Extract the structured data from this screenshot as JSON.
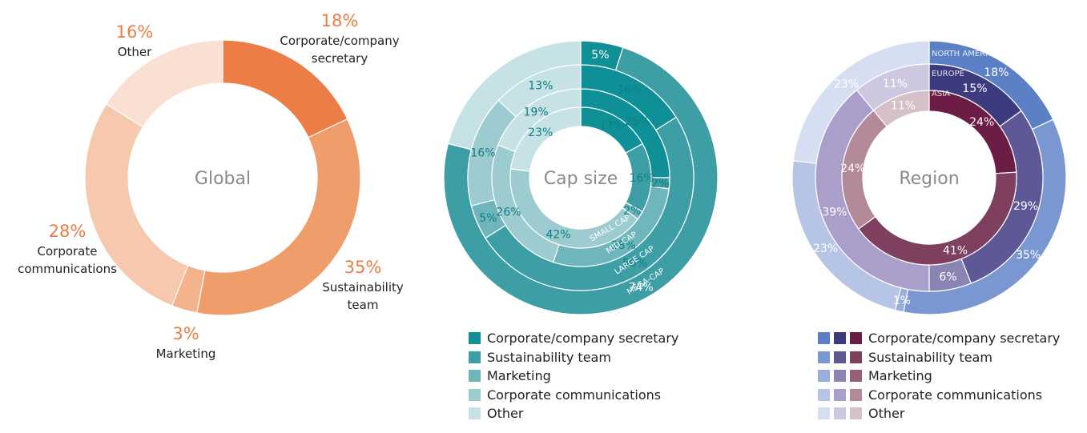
{
  "categories": [
    "Corporate/company secretary",
    "Sustainability team",
    "Marketing",
    "Corporate communications",
    "Other"
  ],
  "charts": [
    {
      "center_label": "Global",
      "rings": [
        {
          "values": [
            18,
            35,
            3,
            28,
            16
          ],
          "colors": [
            "#ec7d46",
            "#f09d6c",
            "#f3b38d",
            "#f6c8ad",
            "#fae0d2"
          ],
          "value_labels": [
            "18%",
            "35%",
            "3%",
            "28%",
            "16%"
          ]
        }
      ],
      "outer_labels": {
        "values": [
          "18%",
          "35%",
          "3%",
          "28%",
          "16%"
        ],
        "names": [
          "Corporate/company secretary",
          "Sustainability team",
          "Marketing",
          "Corporate communications",
          "Other"
        ],
        "value_color": "#ec7d46"
      }
    },
    {
      "center_label": "Cap size",
      "rings": [
        {
          "name": "MEGA-CAP",
          "values": [
            5,
            74,
            0,
            0,
            21
          ],
          "colors": [
            "#0f9097",
            "#3e9ea5",
            "#6fb6bc",
            "#9ccbd0",
            "#c7e2e5"
          ],
          "value_labels": [
            "5%",
            "74%",
            "",
            "",
            ""
          ]
        },
        {
          "name": "LARGE CAP",
          "values": [
            16,
            50,
            5,
            16,
            13
          ],
          "colors": [
            "#0f9097",
            "#3e9ea5",
            "#6fb6bc",
            "#9ccbd0",
            "#c7e2e5"
          ],
          "value_labels": [
            "16%",
            "50%",
            "5%",
            "16%",
            "13%"
          ]
        },
        {
          "name": "MID-CAP",
          "values": [
            25,
            2,
            28,
            26,
            19
          ],
          "colors": [
            "#0f9097",
            "#3e9ea5",
            "#6fb6bc",
            "#9ccbd0",
            "#c7e2e5"
          ],
          "value_labels": [
            "25%",
            "2%",
            "28%",
            "26%",
            "19%"
          ]
        },
        {
          "name": "SMALL CAP",
          "values": [
            17,
            16,
            2,
            42,
            23
          ],
          "colors": [
            "#0f9097",
            "#3e9ea5",
            "#6fb6bc",
            "#9ccbd0",
            "#c7e2e5"
          ],
          "value_labels": [
            "17%",
            "16%",
            "2%",
            "42%",
            "23%"
          ]
        }
      ]
    },
    {
      "center_label": "Region",
      "rings": [
        {
          "name": "NORTH AMERICA",
          "values": [
            18,
            35,
            1,
            23,
            23
          ],
          "colors": [
            "#5c80c6",
            "#7b97d2",
            "#98aedc",
            "#b6c5e6",
            "#d6def1"
          ],
          "value_labels": [
            "18%",
            "35%",
            "1%",
            "23%",
            "23%"
          ]
        },
        {
          "name": "EUROPE",
          "values": [
            15,
            29,
            6,
            39,
            11
          ],
          "colors": [
            "#3d3b80",
            "#5e5897",
            "#8a84b2",
            "#a99fca",
            "#cdc8df"
          ],
          "value_labels": [
            "15%",
            "29%",
            "6%",
            "39%",
            "11%"
          ]
        },
        {
          "name": "ASIA",
          "values": [
            24,
            41,
            0,
            24,
            11
          ],
          "colors": [
            "#6b1d45",
            "#7f4060",
            "#966079",
            "#b28a9a",
            "#d5c0c8"
          ],
          "value_labels": [
            "24%",
            "41%",
            "",
            "24%",
            "11%"
          ]
        }
      ]
    }
  ],
  "legend_swatches": [
    [
      [
        "#0f9097"
      ],
      [
        "#3e9ea5"
      ],
      [
        "#6fb6bc"
      ],
      [
        "#9ccbd0"
      ],
      [
        "#c7e2e5"
      ]
    ],
    [
      [
        "#5c80c6",
        "#3d3b80",
        "#6b1d45"
      ],
      [
        "#7b97d2",
        "#5e5897",
        "#7f4060"
      ],
      [
        "#98aedc",
        "#8a84b2",
        "#966079"
      ],
      [
        "#b6c5e6",
        "#a99fca",
        "#b28a9a"
      ],
      [
        "#d6def1",
        "#cdc8df",
        "#d5c0c8"
      ]
    ]
  ]
}
